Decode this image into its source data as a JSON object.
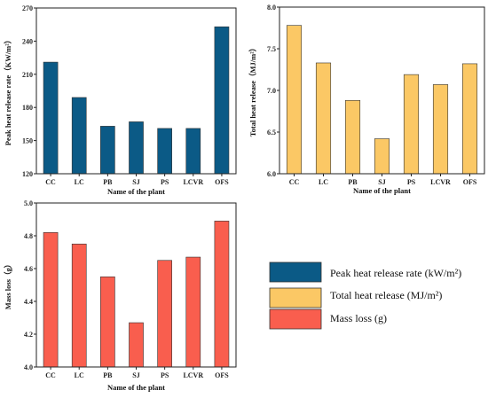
{
  "chart_data": [
    {
      "type": "bar",
      "categories": [
        "CC",
        "LC",
        "PB",
        "SJ",
        "PS",
        "LCVR",
        "OFS"
      ],
      "values": [
        221,
        189,
        163,
        167,
        161,
        161,
        253
      ],
      "title": "",
      "xlabel": "Name of the plant",
      "ylabel": "Peak heat release rate（KW/m²）",
      "ylim": [
        120,
        270
      ],
      "yticks": [
        "120",
        "150",
        "180",
        "210",
        "240",
        "270"
      ],
      "color": "#0b5a86"
    },
    {
      "type": "bar",
      "categories": [
        "CC",
        "LC",
        "PB",
        "SJ",
        "PS",
        "LCVR",
        "OFS"
      ],
      "values": [
        7.78,
        7.33,
        6.88,
        6.42,
        7.19,
        7.07,
        7.32
      ],
      "title": "",
      "xlabel": "Name of the plant",
      "ylabel": "Total heat release（MJ/m²）",
      "ylim": [
        6.0,
        8.0
      ],
      "yticks": [
        "6.0",
        "6.5",
        "7.0",
        "7.5",
        "8.0"
      ],
      "color": "#fbc865"
    },
    {
      "type": "bar",
      "categories": [
        "CC",
        "LC",
        "PB",
        "SJ",
        "PS",
        "LCVR",
        "OFS"
      ],
      "values": [
        4.82,
        4.75,
        4.55,
        4.27,
        4.65,
        4.67,
        4.89
      ],
      "title": "",
      "xlabel": "Name of the plant",
      "ylabel": "Mass loss（g）",
      "ylim": [
        4.0,
        5.0
      ],
      "yticks": [
        "4.0",
        "4.2",
        "4.4",
        "4.6",
        "4.8",
        "5.0"
      ],
      "color": "#f95e4e"
    }
  ],
  "legend": {
    "items": [
      {
        "label": "Peak heat release rate (kW/m²)",
        "color": "#0b5a86"
      },
      {
        "label": "Total heat release (MJ/m²)",
        "color": "#fbc865"
      },
      {
        "label": "Mass loss (g)",
        "color": "#f95e4e"
      }
    ]
  }
}
